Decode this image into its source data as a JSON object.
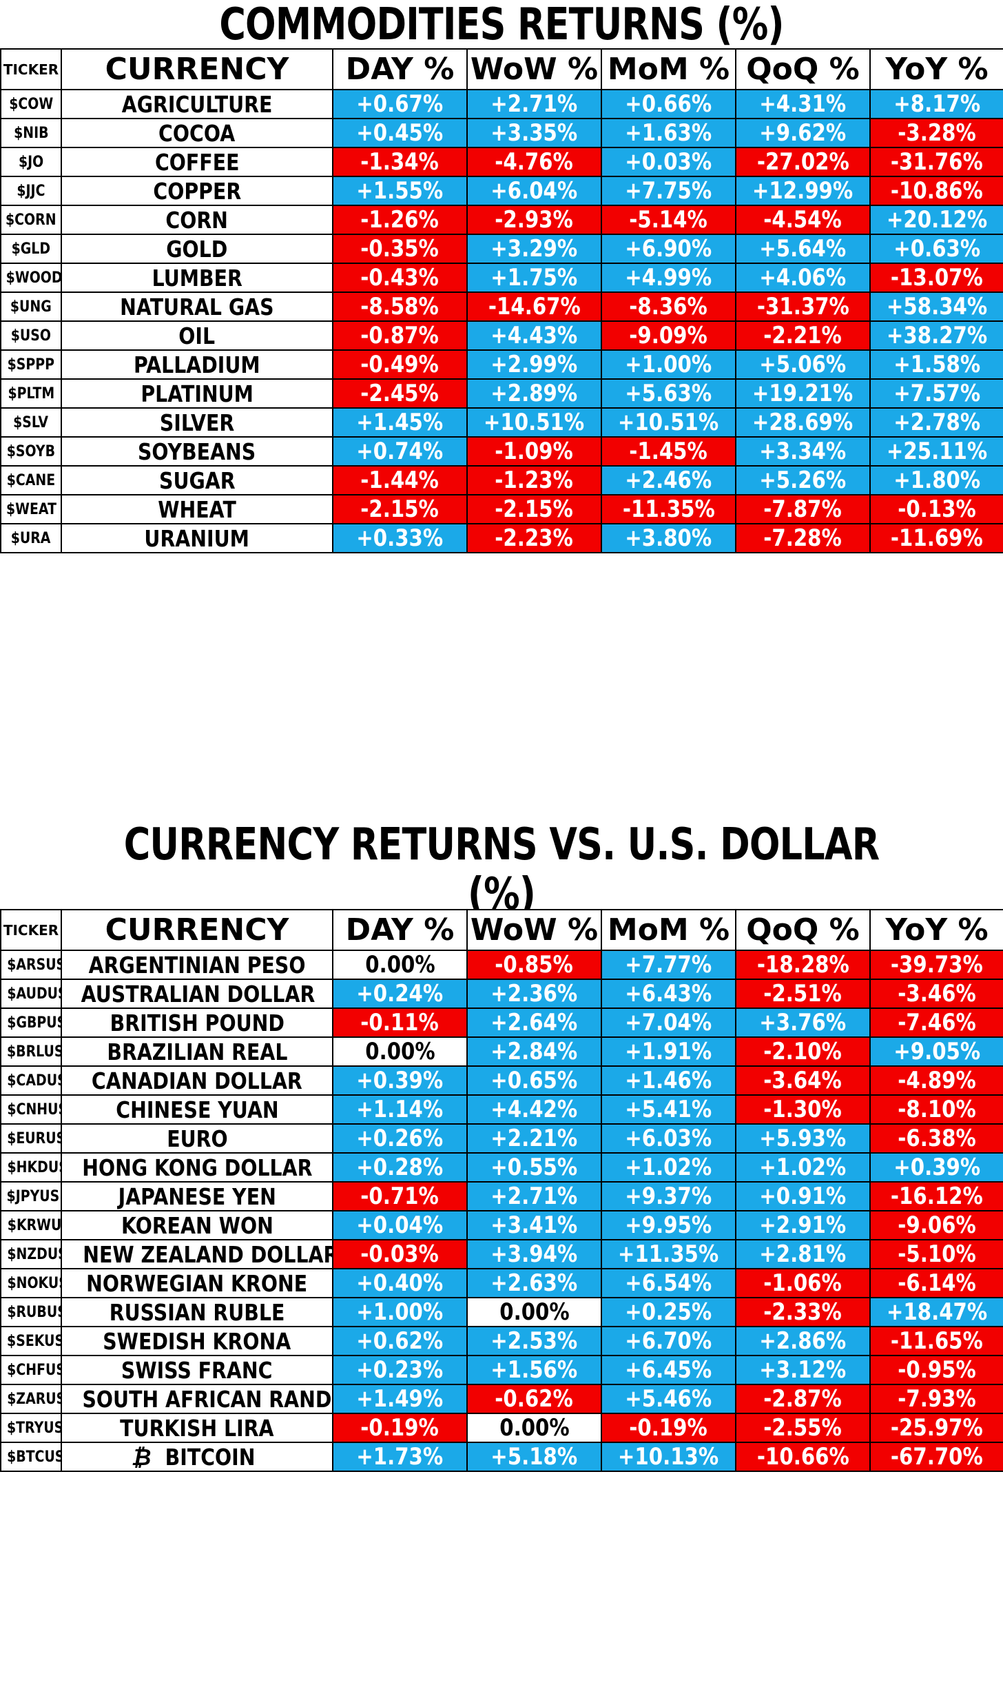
{
  "commodities": {
    "title": "COMMODITIES RETURNS (%)",
    "headers": [
      "TICKER",
      "CURRENCY",
      "DAY %",
      "WoW %",
      "MoM %",
      "QoQ %",
      "YoY %"
    ],
    "rows": [
      {
        "ticker": "$COW",
        "name": "AGRICULTURE",
        "values": [
          "+0.67%",
          "+2.71%",
          "+0.66%",
          "+4.31%",
          "+8.17%"
        ]
      },
      {
        "ticker": "$NIB",
        "name": "COCOA",
        "values": [
          "+0.45%",
          "+3.35%",
          "+1.63%",
          "+9.62%",
          "-3.28%"
        ]
      },
      {
        "ticker": "$JO",
        "name": "COFFEE",
        "values": [
          "-1.34%",
          "-4.76%",
          "+0.03%",
          "-27.02%",
          "-31.76%"
        ]
      },
      {
        "ticker": "$JJC",
        "name": "COPPER",
        "values": [
          "+1.55%",
          "+6.04%",
          "+7.75%",
          "+12.99%",
          "-10.86%"
        ]
      },
      {
        "ticker": "$CORN",
        "name": "CORN",
        "values": [
          "-1.26%",
          "-2.93%",
          "-5.14%",
          "-4.54%",
          "+20.12%"
        ]
      },
      {
        "ticker": "$GLD",
        "name": "GOLD",
        "values": [
          "-0.35%",
          "+3.29%",
          "+6.90%",
          "+5.64%",
          "+0.63%"
        ]
      },
      {
        "ticker": "$WOOD",
        "name": "LUMBER",
        "values": [
          "-0.43%",
          "+1.75%",
          "+4.99%",
          "+4.06%",
          "-13.07%"
        ]
      },
      {
        "ticker": "$UNG",
        "name": "NATURAL GAS",
        "values": [
          "-8.58%",
          "-14.67%",
          "-8.36%",
          "-31.37%",
          "+58.34%"
        ]
      },
      {
        "ticker": "$USO",
        "name": "OIL",
        "values": [
          "-0.87%",
          "+4.43%",
          "-9.09%",
          "-2.21%",
          "+38.27%"
        ]
      },
      {
        "ticker": "$SPPP",
        "name": "PALLADIUM",
        "values": [
          "-0.49%",
          "+2.99%",
          "+1.00%",
          "+5.06%",
          "+1.58%"
        ]
      },
      {
        "ticker": "$PLTM",
        "name": "PLATINUM",
        "values": [
          "-2.45%",
          "+2.89%",
          "+5.63%",
          "+19.21%",
          "+7.57%"
        ]
      },
      {
        "ticker": "$SLV",
        "name": "SILVER",
        "values": [
          "+1.45%",
          "+10.51%",
          "+10.51%",
          "+28.69%",
          "+2.78%"
        ]
      },
      {
        "ticker": "$SOYB",
        "name": "SOYBEANS",
        "values": [
          "+0.74%",
          "-1.09%",
          "-1.45%",
          "+3.34%",
          "+25.11%"
        ]
      },
      {
        "ticker": "$CANE",
        "name": "SUGAR",
        "values": [
          "-1.44%",
          "-1.23%",
          "+2.46%",
          "+5.26%",
          "+1.80%"
        ]
      },
      {
        "ticker": "$WEAT",
        "name": "WHEAT",
        "values": [
          "-2.15%",
          "-2.15%",
          "-11.35%",
          "-7.87%",
          "-0.13%"
        ]
      },
      {
        "ticker": "$URA",
        "name": "URANIUM",
        "values": [
          "+0.33%",
          "-2.23%",
          "+3.80%",
          "-7.28%",
          "-11.69%"
        ]
      }
    ]
  },
  "currencies": {
    "title": "CURRENCY RETURNS VS. U.S. DOLLAR (%)",
    "headers": [
      "TICKER",
      "CURRENCY",
      "DAY %",
      "WoW %",
      "MoM %",
      "QoQ %",
      "YoY %"
    ],
    "rows": [
      {
        "ticker": "$ARSUSD",
        "name": "ARGENTINIAN PESO",
        "values": [
          "0.00%",
          "-0.85%",
          "+7.77%",
          "-18.28%",
          "-39.73%"
        ]
      },
      {
        "ticker": "$AUDUSD",
        "name": "AUSTRALIAN DOLLAR",
        "values": [
          "+0.24%",
          "+2.36%",
          "+6.43%",
          "-2.51%",
          "-3.46%"
        ]
      },
      {
        "ticker": "$GBPUSD",
        "name": "BRITISH POUND",
        "values": [
          "-0.11%",
          "+2.64%",
          "+7.04%",
          "+3.76%",
          "-7.46%"
        ]
      },
      {
        "ticker": "$BRLUSD",
        "name": "BRAZILIAN REAL",
        "values": [
          "0.00%",
          "+2.84%",
          "+1.91%",
          "-2.10%",
          "+9.05%"
        ]
      },
      {
        "ticker": "$CADUSD",
        "name": "CANADIAN DOLLAR",
        "values": [
          "+0.39%",
          "+0.65%",
          "+1.46%",
          "-3.64%",
          "-4.89%"
        ]
      },
      {
        "ticker": "$CNHUSD",
        "name": "CHINESE YUAN",
        "values": [
          "+1.14%",
          "+4.42%",
          "+5.41%",
          "-1.30%",
          "-8.10%"
        ]
      },
      {
        "ticker": "$EURUSD",
        "name": "EURO",
        "values": [
          "+0.26%",
          "+2.21%",
          "+6.03%",
          "+5.93%",
          "-6.38%"
        ]
      },
      {
        "ticker": "$HKDUSD",
        "name": "HONG KONG DOLLAR",
        "values": [
          "+0.28%",
          "+0.55%",
          "+1.02%",
          "+1.02%",
          "+0.39%"
        ]
      },
      {
        "ticker": "$JPYUSD",
        "name": "JAPANESE YEN",
        "values": [
          "-0.71%",
          "+2.71%",
          "+9.37%",
          "+0.91%",
          "-16.12%"
        ]
      },
      {
        "ticker": "$KRWUSD",
        "name": "KOREAN WON",
        "values": [
          "+0.04%",
          "+3.41%",
          "+9.95%",
          "+2.91%",
          "-9.06%"
        ]
      },
      {
        "ticker": "$NZDUSD",
        "name": "NEW ZEALAND DOLLAR",
        "values": [
          "-0.03%",
          "+3.94%",
          "+11.35%",
          "+2.81%",
          "-5.10%"
        ]
      },
      {
        "ticker": "$NOKUSD",
        "name": "NORWEGIAN KRONE",
        "values": [
          "+0.40%",
          "+2.63%",
          "+6.54%",
          "-1.06%",
          "-6.14%"
        ]
      },
      {
        "ticker": "$RUBUSD",
        "name": "RUSSIAN RUBLE",
        "values": [
          "+1.00%",
          "0.00%",
          "+0.25%",
          "-2.33%",
          "+18.47%"
        ]
      },
      {
        "ticker": "$SEKUSD",
        "name": "SWEDISH KRONA",
        "values": [
          "+0.62%",
          "+2.53%",
          "+6.70%",
          "+2.86%",
          "-11.65%"
        ]
      },
      {
        "ticker": "$CHFUSD",
        "name": "SWISS FRANC",
        "values": [
          "+0.23%",
          "+1.56%",
          "+6.45%",
          "+3.12%",
          "-0.95%"
        ]
      },
      {
        "ticker": "$ZARUSD",
        "name": "SOUTH AFRICAN RAND",
        "values": [
          "+1.49%",
          "-0.62%",
          "+5.46%",
          "-2.87%",
          "-7.93%"
        ]
      },
      {
        "ticker": "$TRYUSD",
        "name": "TURKISH LIRA",
        "values": [
          "-0.19%",
          "0.00%",
          "-0.19%",
          "-2.55%",
          "-25.97%"
        ]
      },
      {
        "ticker": "$BTCUSD",
        "name": "BITCOIN",
        "icon": "bitcoin-icon",
        "values": [
          "+1.73%",
          "+5.18%",
          "+10.13%",
          "-10.66%",
          "-67.70%"
        ]
      }
    ]
  },
  "colors": {
    "positive": "#1ba9e8",
    "negative": "#f20000",
    "zero": "#ffffff"
  }
}
